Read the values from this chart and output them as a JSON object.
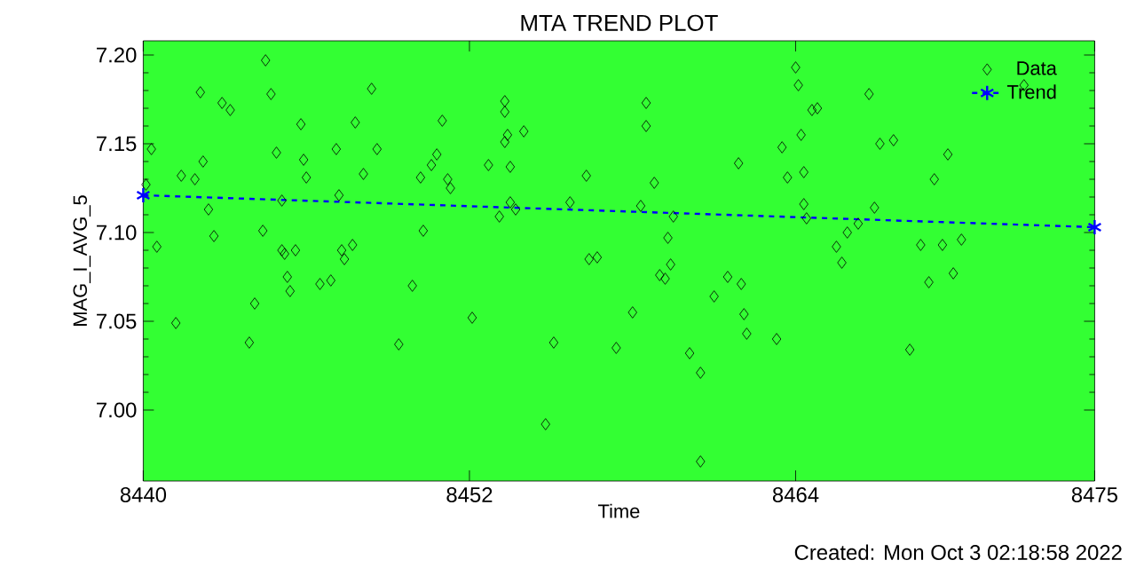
{
  "chart_data": {
    "type": "scatter",
    "title": "MTA TREND PLOT",
    "xlabel": "Time",
    "ylabel": "MAG_I_AVG_5",
    "annotations": [
      "Created: Mon Oct  3 02:18:58 2022"
    ],
    "xlim": [
      8440,
      8475
    ],
    "ylim": [
      6.96,
      7.208
    ],
    "xticks": [
      8440,
      8452,
      8464,
      8475
    ],
    "yticks": [
      {
        "value": 7.0,
        "label": "7.00"
      },
      {
        "value": 7.05,
        "label": "7.05"
      },
      {
        "value": 7.1,
        "label": "7.10"
      },
      {
        "value": 7.15,
        "label": "7.15"
      },
      {
        "value": 7.2,
        "label": "7.20"
      }
    ],
    "grid": false,
    "legend": "top right",
    "marker": "diamond",
    "series": [
      {
        "name": "Data",
        "type": "scatter",
        "color": "#000000",
        "x": [
          8440.1,
          8440.3,
          8440.5,
          8441.4,
          8441.9,
          8442.1,
          8442.2,
          8442.4,
          8442.6,
          8442.9,
          8443.2,
          8444.4,
          8444.5,
          8444.7,
          8444.9,
          8445.1,
          8445.1,
          8445.2,
          8445.6,
          8445.8,
          8445.9,
          8446.0,
          8447.1,
          8447.2,
          8447.3,
          8447.4,
          8447.7,
          8447.8,
          8448.1,
          8448.4,
          8448.6,
          8450.2,
          8450.3,
          8450.6,
          8450.8,
          8451.0,
          8451.2,
          8451.3,
          8452.7,
          8453.1,
          8453.3,
          8453.3,
          8453.4,
          8453.3,
          8453.5,
          8453.5,
          8453.7,
          8454.0,
          8455.7,
          8456.3,
          8456.4,
          8456.7,
          8441.2,
          8443.9,
          8444.1,
          8445.3,
          8445.4,
          8446.5,
          8446.9,
          8449.4,
          8449.9,
          8452.1,
          8454.8,
          8455.1,
          8457.4,
          8458.0,
          8458.3,
          8458.5,
          8458.5,
          8458.8,
          8459.3,
          8459.5,
          8459.4,
          8461.9,
          8463.5,
          8463.7,
          8464.0,
          8464.1,
          8464.2,
          8464.3,
          8464.3,
          8464.4,
          8464.6,
          8464.8,
          8465.5,
          8465.9,
          8466.3,
          8466.7,
          8466.9,
          8467.1,
          8467.6,
          8468.6,
          8469.1,
          8469.4,
          8469.6,
          8470.1,
          8472.4,
          8459.0,
          8459.2,
          8460.1,
          8460.5,
          8460.5,
          8461.0,
          8461.5,
          8462.0,
          8462.1,
          8462.2,
          8463.3,
          8465.7,
          8468.2,
          8468.9,
          8469.8
        ],
        "values": [
          7.127,
          7.147,
          7.092,
          7.132,
          7.13,
          7.179,
          7.14,
          7.113,
          7.098,
          7.173,
          7.169,
          7.101,
          7.197,
          7.178,
          7.145,
          7.118,
          7.09,
          7.088,
          7.09,
          7.161,
          7.141,
          7.131,
          7.147,
          7.121,
          7.09,
          7.085,
          7.093,
          7.162,
          7.133,
          7.181,
          7.147,
          7.131,
          7.101,
          7.138,
          7.144,
          7.163,
          7.13,
          7.125,
          7.138,
          7.109,
          7.174,
          7.168,
          7.155,
          7.151,
          7.137,
          7.117,
          7.113,
          7.157,
          7.117,
          7.132,
          7.085,
          7.086,
          7.049,
          7.038,
          7.06,
          7.075,
          7.067,
          7.071,
          7.073,
          7.037,
          7.07,
          7.052,
          6.992,
          7.038,
          7.035,
          7.055,
          7.115,
          7.173,
          7.16,
          7.128,
          7.097,
          7.109,
          7.082,
          7.139,
          7.148,
          7.131,
          7.193,
          7.183,
          7.155,
          7.134,
          7.116,
          7.108,
          7.169,
          7.17,
          7.092,
          7.1,
          7.105,
          7.178,
          7.114,
          7.15,
          7.152,
          7.093,
          7.13,
          7.093,
          7.144,
          7.096,
          7.183,
          7.076,
          7.074,
          7.032,
          7.021,
          6.971,
          7.064,
          7.075,
          7.071,
          7.054,
          7.043,
          7.04,
          7.083,
          7.034,
          7.072,
          7.077
        ]
      },
      {
        "name": "Trend",
        "type": "line",
        "color": "#0000ff",
        "line_style": "dashed",
        "marker": "cross",
        "x": [
          8440,
          8475
        ],
        "values": [
          7.121,
          7.103
        ]
      }
    ]
  }
}
